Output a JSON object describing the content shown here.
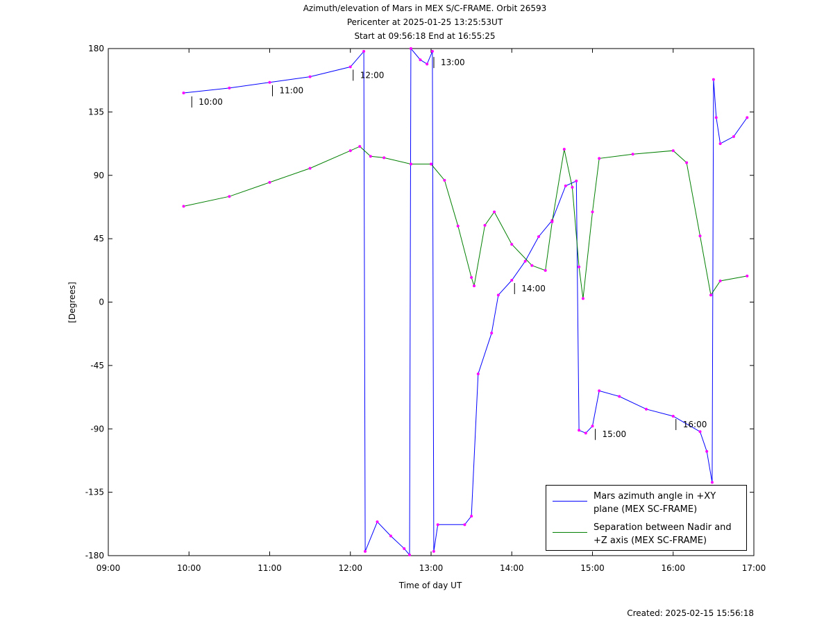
{
  "chart_data": {
    "type": "line",
    "title": "Azimuth/elevation of Mars in MEX S/C-FRAME.  Orbit 26593",
    "subtitle": [
      "Pericenter at 2025-01-25 13:25:53UT",
      "Start at 09:56:18 End at 16:55:25"
    ],
    "xlabel": "Time of day UT",
    "ylabel": "[Degrees]",
    "footer": "Created: 2025-02-15 15:56:18",
    "xlim": [
      "09:00",
      "17:00"
    ],
    "xticks": [
      "09:00",
      "10:00",
      "11:00",
      "12:00",
      "13:00",
      "14:00",
      "15:00",
      "16:00",
      "17:00"
    ],
    "ylim": [
      -180,
      180
    ],
    "yticks": [
      180,
      135,
      90,
      45,
      0,
      -45,
      -90,
      -135,
      -180
    ],
    "legend": "lower right",
    "marker_color": "#ff00ff",
    "series": [
      {
        "name": "Mars azimuth angle in +XY plane (MEX SC-FRAME)",
        "color": "#0000ff",
        "x": [
          "09:56",
          "10:30",
          "11:00",
          "11:30",
          "12:00",
          "12:10",
          "12:11",
          "12:20",
          "12:30",
          "12:40",
          "12:44",
          "12:45",
          "12:52",
          "12:57",
          "13:01",
          "13:02",
          "13:05",
          "13:25",
          "13:30",
          "13:35",
          "13:45",
          "13:50",
          "14:00",
          "14:10",
          "14:20",
          "14:30",
          "14:40",
          "14:48",
          "14:50",
          "14:55",
          "15:00",
          "15:05",
          "15:20",
          "15:40",
          "16:00",
          "16:20",
          "16:25",
          "16:29",
          "16:30",
          "16:32",
          "16:35",
          "16:45",
          "16:55"
        ],
        "values": [
          148.5,
          152,
          156,
          160,
          167,
          178,
          -177,
          -156,
          -166,
          -175,
          -179.5,
          180,
          172,
          169,
          178,
          -177,
          -158,
          -158,
          -152,
          -51,
          -22,
          5,
          15.5,
          29,
          46.5,
          58,
          82.5,
          86,
          -91,
          -93,
          -88,
          -63,
          -67,
          -76,
          -81,
          -92,
          -106,
          -128,
          158,
          131,
          112.5,
          117.5,
          131
        ]
      },
      {
        "name": "Separation between Nadir and +Z axis (MEX SC-FRAME)",
        "color": "#007f00",
        "x": [
          "09:56",
          "10:30",
          "11:00",
          "11:30",
          "12:00",
          "12:07",
          "12:15",
          "12:25",
          "12:45",
          "13:00",
          "13:10",
          "13:20",
          "13:30",
          "13:32",
          "13:40",
          "13:47",
          "14:00",
          "14:15",
          "14:25",
          "14:30",
          "14:39",
          "14:45",
          "14:50",
          "14:53",
          "15:00",
          "15:05",
          "15:30",
          "16:00",
          "16:10",
          "16:20",
          "16:28",
          "16:35",
          "16:55"
        ],
        "values": [
          68,
          75,
          85,
          95,
          107.5,
          110.5,
          103.5,
          102.5,
          98,
          98,
          86.5,
          54,
          17.5,
          11.5,
          54.5,
          64,
          41,
          26,
          22.5,
          57,
          108.5,
          81.5,
          25,
          2.5,
          64,
          102,
          105,
          107.5,
          99,
          47,
          5,
          15,
          18.5
        ]
      }
    ],
    "annotations": [
      {
        "text": "10:00",
        "x": "10:00",
        "y": 148
      },
      {
        "text": "11:00",
        "x": "11:00",
        "y": 156
      },
      {
        "text": "12:00",
        "x": "12:00",
        "y": 167
      },
      {
        "text": "13:00",
        "x": "13:00",
        "y": 176
      },
      {
        "text": "14:00",
        "x": "14:00",
        "y": 15.5
      },
      {
        "text": "15:00",
        "x": "15:00",
        "y": -88
      },
      {
        "text": "16:00",
        "x": "16:00",
        "y": -81
      }
    ]
  }
}
